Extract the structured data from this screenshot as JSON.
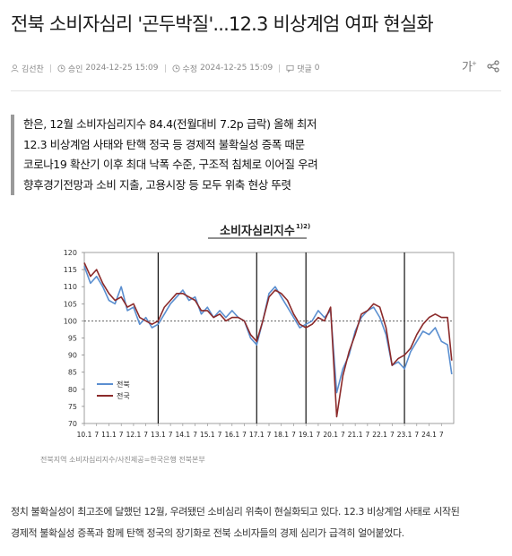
{
  "article": {
    "headline": "전북 소비자심리 '곤두박질'...12.3 비상계엄 여파 현실화",
    "author": "김선찬",
    "created_label": "승인",
    "created": "2024-12-25 15:09",
    "modified_label": "수정",
    "modified": "2024-12-25 15:09",
    "comments_label": "댓글",
    "comments_count": "0",
    "summary": [
      "한은, 12월 소비자심리지수 84.4(전월대비 7.2p 급락) 올해 최저",
      "12.3 비상계엄 사태와 탄핵 정국 등 경제적 불확실성 증폭 때문",
      "코로나19 확산기 이후 최대 낙폭 수준, 구조적 침체로 이어질 우려",
      "향후경기전망과 소비 지출, 고용시장 등 모두 위축 현상 뚜렷"
    ],
    "photo_caption": "전북지역 소비자심리지수/사진제공=한국은행 전북본부",
    "body": [
      "정치 불확실성이 최고조에 달했던 12월, 우려됐던 소비심리 위축이 현실화되고 있다. 12.3 비상계엄 사태로 시작된",
      "경제적 불확실성 증폭과 함께 탄핵 정국의 장기화로 전북 소비자들의 경제 심리가 급격히 얼어붙었다."
    ]
  },
  "icons": [
    "user-icon",
    "clock-icon",
    "clock-icon",
    "comment-icon",
    "font-size-icon",
    "share-icon"
  ],
  "colors": {
    "jeonbuk": "#5b8fd0",
    "national": "#8b2a2a",
    "summary_bar": "#9a9a9a"
  },
  "chart_data": {
    "type": "line",
    "title": "소비자심리지수",
    "title_superscript": "1)2)",
    "ylim": [
      70,
      120
    ],
    "yticks": [
      70,
      75,
      80,
      85,
      90,
      95,
      100,
      105,
      110,
      115,
      120
    ],
    "x_tick_labels": [
      "10.1",
      "7",
      "11.1",
      "7",
      "12.1",
      "7",
      "13.1",
      "7",
      "14.1",
      "7",
      "15.1",
      "7",
      "16.1",
      "7",
      "17.1",
      "7",
      "18.1",
      "7",
      "19.1",
      "7",
      "20.1",
      "7",
      "21.1",
      "7",
      "22.1",
      "7",
      "23.1",
      "7",
      "24.1",
      "7"
    ],
    "x_range": [
      2010.0,
      2025.0
    ],
    "vlines": [
      2013.0,
      2017.0,
      2019.0,
      2023.0
    ],
    "hline": 100,
    "legend_position": "bottom-left",
    "series": [
      {
        "name": "전북",
        "x": [
          2010.0,
          2010.25,
          2010.5,
          2010.75,
          2011.0,
          2011.25,
          2011.5,
          2011.75,
          2012.0,
          2012.25,
          2012.5,
          2012.75,
          2013.0,
          2013.25,
          2013.5,
          2013.75,
          2014.0,
          2014.25,
          2014.5,
          2014.75,
          2015.0,
          2015.25,
          2015.5,
          2015.75,
          2016.0,
          2016.25,
          2016.5,
          2016.75,
          2017.0,
          2017.25,
          2017.5,
          2017.75,
          2018.0,
          2018.25,
          2018.5,
          2018.75,
          2019.0,
          2019.25,
          2019.5,
          2019.75,
          2020.0,
          2020.25,
          2020.5,
          2020.75,
          2021.0,
          2021.25,
          2021.5,
          2021.75,
          2022.0,
          2022.25,
          2022.5,
          2022.75,
          2023.0,
          2023.25,
          2023.5,
          2023.75,
          2024.0,
          2024.25,
          2024.5,
          2024.75,
          2024.92
        ],
        "values": [
          116,
          111,
          113,
          110,
          106,
          105,
          110,
          103,
          104,
          99,
          101,
          98,
          99,
          102,
          105,
          107,
          109,
          106,
          107,
          102,
          104,
          101,
          103,
          101,
          103,
          101,
          100,
          95,
          93,
          100,
          108,
          110,
          107,
          104,
          101,
          98,
          99,
          100,
          103,
          101,
          103,
          79,
          86,
          90,
          97,
          101,
          103,
          104,
          101,
          96,
          87,
          88,
          86,
          91,
          94,
          97,
          96,
          98,
          94,
          93,
          84.4
        ]
      },
      {
        "name": "전국",
        "x": [
          2010.0,
          2010.25,
          2010.5,
          2010.75,
          2011.0,
          2011.25,
          2011.5,
          2011.75,
          2012.0,
          2012.25,
          2012.5,
          2012.75,
          2013.0,
          2013.25,
          2013.5,
          2013.75,
          2014.0,
          2014.25,
          2014.5,
          2014.75,
          2015.0,
          2015.25,
          2015.5,
          2015.75,
          2016.0,
          2016.25,
          2016.5,
          2016.75,
          2017.0,
          2017.25,
          2017.5,
          2017.75,
          2018.0,
          2018.25,
          2018.5,
          2018.75,
          2019.0,
          2019.25,
          2019.5,
          2019.75,
          2020.0,
          2020.25,
          2020.5,
          2020.75,
          2021.0,
          2021.25,
          2021.5,
          2021.75,
          2022.0,
          2022.25,
          2022.5,
          2022.75,
          2023.0,
          2023.25,
          2023.5,
          2023.75,
          2024.0,
          2024.25,
          2024.5,
          2024.75,
          2024.92
        ],
        "values": [
          117,
          113,
          115,
          111,
          108,
          106,
          107,
          104,
          105,
          101,
          100,
          99,
          100,
          104,
          106,
          108,
          108,
          107,
          106,
          103,
          103,
          101,
          102,
          100,
          101,
          101,
          100,
          96,
          94,
          100,
          107,
          109,
          108,
          106,
          102,
          99,
          98,
          99,
          101,
          100,
          104,
          72,
          84,
          91,
          96,
          102,
          103,
          105,
          104,
          98,
          87,
          89,
          90,
          92,
          96,
          99,
          101,
          102,
          101,
          101,
          88.4
        ]
      }
    ]
  }
}
